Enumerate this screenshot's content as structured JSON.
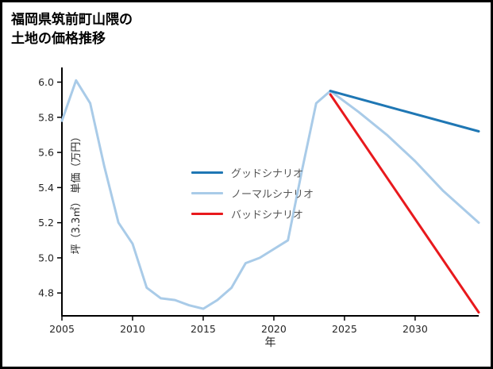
{
  "title": {
    "line1": "福岡県筑前町山隈の",
    "line2": "土地の価格推移"
  },
  "chart_data": {
    "type": "line",
    "title": "福岡県筑前町山隈の土地の価格推移",
    "xlabel": "年",
    "ylabel": "坪（3.3㎡） 単価（万円）",
    "xlim": [
      2005,
      2034.5
    ],
    "ylim": [
      4.67,
      6.07
    ],
    "xticks": [
      2005,
      2010,
      2015,
      2020,
      2025,
      2030
    ],
    "yticks": [
      4.8,
      5.0,
      5.2,
      5.4,
      5.6,
      5.8,
      6.0
    ],
    "grid": false,
    "legend_position": "center",
    "axis_color": "#000000",
    "tick_label_color": "#262626",
    "draw_order": [
      1,
      0,
      2
    ],
    "series": [
      {
        "name": "グッドシナリオ",
        "color": "#1f77b4",
        "width": 3,
        "x": [
          2024,
          2029,
          2034.5
        ],
        "y": [
          5.95,
          5.84,
          5.72
        ]
      },
      {
        "name": "ノーマルシナリオ",
        "color": "#a9cbe8",
        "width": 3,
        "x": [
          2005,
          2006,
          2007,
          2008,
          2009,
          2010,
          2011,
          2012,
          2013,
          2014,
          2015,
          2016,
          2017,
          2018,
          2019,
          2020,
          2021,
          2022,
          2023,
          2024,
          2026,
          2028,
          2030,
          2032,
          2034.5
        ],
        "y": [
          5.78,
          6.01,
          5.88,
          5.52,
          5.2,
          5.08,
          4.83,
          4.77,
          4.76,
          4.73,
          4.71,
          4.76,
          4.83,
          4.97,
          5.0,
          5.05,
          5.1,
          5.5,
          5.88,
          5.95,
          5.83,
          5.7,
          5.55,
          5.38,
          5.2
        ]
      },
      {
        "name": "バッドシナリオ",
        "color": "#e8191d",
        "width": 3,
        "x": [
          2024,
          2034.5
        ],
        "y": [
          5.93,
          4.69
        ]
      }
    ]
  }
}
